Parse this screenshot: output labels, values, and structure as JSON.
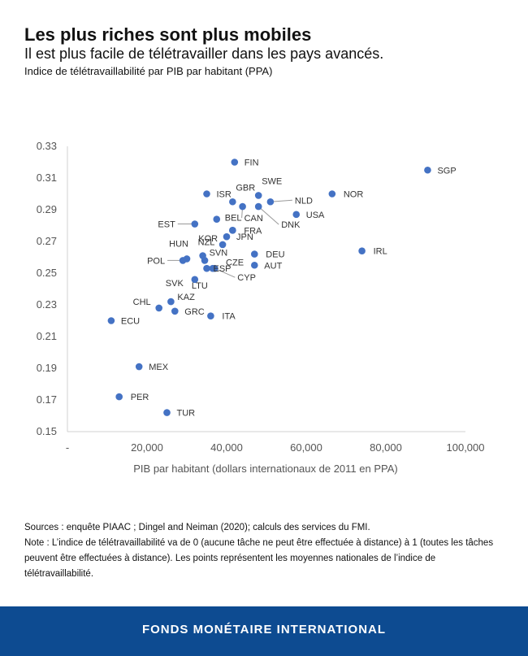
{
  "header": {
    "title": "Les plus riches sont plus mobiles",
    "subtitle": "Il est plus facile de télétravailler dans les pays avancés.",
    "chart_label": "Indice de télétravaillabilité par PIB par habitant (PPA)"
  },
  "chart_data": {
    "type": "scatter",
    "xlabel": "PIB par habitant (dollars internationaux de 2011 en PPA)",
    "ylabel": "",
    "xlim": [
      0,
      100000
    ],
    "ylim": [
      0.15,
      0.33
    ],
    "x_ticks": [
      {
        "value": 0,
        "label": "-"
      },
      {
        "value": 20000,
        "label": "20,000"
      },
      {
        "value": 40000,
        "label": "40,000"
      },
      {
        "value": 60000,
        "label": "60,000"
      },
      {
        "value": 80000,
        "label": "80,000"
      },
      {
        "value": 100000,
        "label": "100,000"
      }
    ],
    "y_ticks": [
      {
        "value": 0.15,
        "label": "0.15"
      },
      {
        "value": 0.17,
        "label": "0.17"
      },
      {
        "value": 0.19,
        "label": "0.19"
      },
      {
        "value": 0.21,
        "label": "0.21"
      },
      {
        "value": 0.23,
        "label": "0.23"
      },
      {
        "value": 0.25,
        "label": "0.25"
      },
      {
        "value": 0.27,
        "label": "0.27"
      },
      {
        "value": 0.29,
        "label": "0.29"
      },
      {
        "value": 0.31,
        "label": "0.31"
      },
      {
        "value": 0.33,
        "label": "0.33"
      }
    ],
    "grid": false,
    "point_color": "#4472c4",
    "points": [
      {
        "label": "FIN",
        "x": 42000,
        "y": 0.32
      },
      {
        "label": "SGP",
        "x": 90500,
        "y": 0.315
      },
      {
        "label": "ISR",
        "x": 35000,
        "y": 0.3
      },
      {
        "label": "GBR",
        "x": 41500,
        "y": 0.295
      },
      {
        "label": "SWE",
        "x": 48000,
        "y": 0.299
      },
      {
        "label": "NOR",
        "x": 66500,
        "y": 0.3
      },
      {
        "label": "NLD",
        "x": 51000,
        "y": 0.295
      },
      {
        "label": "CAN",
        "x": 44000,
        "y": 0.292
      },
      {
        "label": "DNK",
        "x": 48000,
        "y": 0.292
      },
      {
        "label": "USA",
        "x": 57500,
        "y": 0.287
      },
      {
        "label": "BEL",
        "x": 37500,
        "y": 0.284
      },
      {
        "label": "EST",
        "x": 32000,
        "y": 0.281
      },
      {
        "label": "NZL",
        "x": 41500,
        "y": 0.277
      },
      {
        "label": "FRA",
        "x": 41500,
        "y": 0.277
      },
      {
        "label": "JPN",
        "x": 40000,
        "y": 0.273
      },
      {
        "label": "KOR",
        "x": 39000,
        "y": 0.268
      },
      {
        "label": "IRL",
        "x": 74000,
        "y": 0.264
      },
      {
        "label": "DEU",
        "x": 47000,
        "y": 0.262
      },
      {
        "label": "HUN",
        "x": 30000,
        "y": 0.259
      },
      {
        "label": "SVN",
        "x": 34000,
        "y": 0.261
      },
      {
        "label": "POL",
        "x": 29000,
        "y": 0.258
      },
      {
        "label": "CZE",
        "x": 34500,
        "y": 0.258
      },
      {
        "label": "AUT",
        "x": 47000,
        "y": 0.255
      },
      {
        "label": "CYP",
        "x": 37000,
        "y": 0.253
      },
      {
        "label": "SVK",
        "x": 32000,
        "y": 0.246
      },
      {
        "label": "ESP",
        "x": 35000,
        "y": 0.253
      },
      {
        "label": "LTU",
        "x": 36500,
        "y": 0.253
      },
      {
        "label": "KAZ",
        "x": 26000,
        "y": 0.232
      },
      {
        "label": "CHL",
        "x": 23000,
        "y": 0.228
      },
      {
        "label": "GRC",
        "x": 27000,
        "y": 0.226
      },
      {
        "label": "ITA",
        "x": 36000,
        "y": 0.223
      },
      {
        "label": "ECU",
        "x": 11000,
        "y": 0.22
      },
      {
        "label": "MEX",
        "x": 18000,
        "y": 0.191
      },
      {
        "label": "PER",
        "x": 13000,
        "y": 0.172
      },
      {
        "label": "TUR",
        "x": 25000,
        "y": 0.162
      }
    ]
  },
  "footer": {
    "sources": "Sources : enquête PIAAC ; Dingel and Neiman (2020); calculs des services du FMI.",
    "note": "Note : L’indice de télétravaillabilité va de 0 (aucune tâche ne peut être effectuée à distance) à 1 (toutes les tâches peuvent être effectuées à distance). Les points représentent les moyennes nationales de l’indice de télétravaillabilité.",
    "organization": "FONDS MONÉTAIRE INTERNATIONAL"
  }
}
